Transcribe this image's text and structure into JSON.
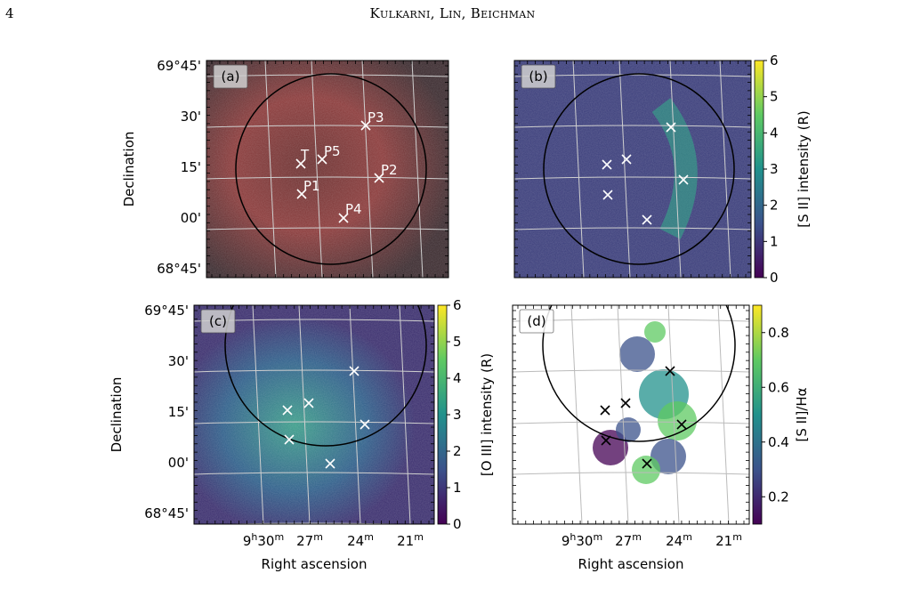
{
  "page": {
    "number": "4",
    "running_head": "Kulkarni, Lin, Beichman"
  },
  "axes": {
    "dec_ticks": [
      "69°45'",
      "30'",
      "15'",
      "00'",
      "68°45'"
    ],
    "ra_ticks": [
      "9h30m",
      "27m",
      "24m",
      "21m"
    ],
    "ylabel": "Declination",
    "xlabel": "Right ascension"
  },
  "sources": [
    {
      "label": "T",
      "ra_min": 27.2,
      "dec_arcmin": 14
    },
    {
      "label": "P1",
      "ra_min": 27.2,
      "dec_arcmin": 5
    },
    {
      "label": "P2",
      "ra_min": 23.0,
      "dec_arcmin": 10
    },
    {
      "label": "P3",
      "ra_min": 23.6,
      "dec_arcmin": 26
    },
    {
      "label": "P4",
      "ra_min": 25.1,
      "dec_arcmin": -2
    },
    {
      "label": "P5",
      "ra_min": 26.3,
      "dec_arcmin": 16
    }
  ],
  "panels": [
    {
      "tag": "(a)",
      "kind": "rgb composite",
      "colorbar": null
    },
    {
      "tag": "(b)",
      "kind": "[S II] intensity",
      "colorbar": {
        "label": "[S II] intensity (R)",
        "ticks": [
          "0",
          "1",
          "2",
          "3",
          "4",
          "5",
          "6"
        ],
        "range": [
          0,
          6
        ]
      }
    },
    {
      "tag": "(c)",
      "kind": "[O III] intensity",
      "colorbar": {
        "label": "[O III] intensity (R)",
        "ticks": [
          "0",
          "1",
          "2",
          "3",
          "4",
          "5",
          "6"
        ],
        "range": [
          0,
          6
        ]
      }
    },
    {
      "tag": "(d)",
      "kind": "[S II]/Hα ratio",
      "colorbar": {
        "label": "[S II]/Hα",
        "ticks": [
          "0.2",
          "0.4",
          "0.6",
          "0.8"
        ],
        "range": [
          0.1,
          0.9
        ]
      }
    }
  ],
  "colors": {
    "viridis": [
      "#440154",
      "#3b528b",
      "#21918c",
      "#5ec962",
      "#fde725"
    ]
  }
}
